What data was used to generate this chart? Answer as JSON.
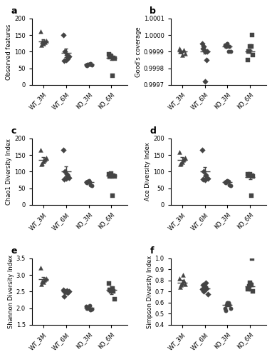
{
  "groups": [
    "WT_3M",
    "WT_6M",
    "KO_3M",
    "KO_6M"
  ],
  "panel_a": {
    "title": "a",
    "ylabel": "Observed features",
    "ylim": [
      0,
      200
    ],
    "yticks": [
      0,
      50,
      100,
      150,
      200
    ],
    "means": [
      130,
      97,
      62,
      82
    ],
    "sems": [
      7,
      13,
      2,
      6
    ],
    "points": [
      [
        162,
        130,
        125,
        128,
        133,
        120,
        130
      ],
      [
        150,
        100,
        75,
        80,
        85,
        73,
        90
      ],
      [
        60,
        62,
        63,
        65,
        60,
        58,
        62
      ],
      [
        93,
        88,
        85,
        82,
        80,
        83,
        27
      ]
    ],
    "jitter": [
      [
        -0.12,
        -0.05,
        0.0,
        0.08,
        0.13,
        -0.08,
        0.05
      ],
      [
        -0.12,
        -0.05,
        0.0,
        0.08,
        0.13,
        -0.08,
        0.05
      ],
      [
        -0.12,
        -0.05,
        0.0,
        0.08,
        0.13,
        -0.08,
        0.05
      ],
      [
        -0.12,
        -0.05,
        0.0,
        0.08,
        0.13,
        -0.08,
        0.05
      ]
    ]
  },
  "panel_b": {
    "title": "b",
    "ylabel": "Good's coverage",
    "ylim": [
      0.9997,
      1.0001
    ],
    "yticks": [
      0.9997,
      0.9998,
      0.9999,
      1.0,
      1.0001
    ],
    "ytick_labels": [
      "0.9997",
      "0.9998",
      "0.9999",
      "1.0000",
      "1.0001"
    ],
    "means": [
      0.9999,
      0.9999,
      0.99993,
      0.9999
    ],
    "sems": [
      4e-06,
      1.3e-05,
      4e-06,
      9e-06
    ],
    "points": [
      [
        0.99992,
        0.9999,
        0.99988,
        0.99991,
        0.99989,
        0.9999
      ],
      [
        0.99995,
        0.99993,
        0.9999,
        0.99985,
        0.99972,
        0.99992,
        0.9999
      ],
      [
        0.99994,
        0.99993,
        0.99995,
        0.99993,
        0.9999,
        0.99993,
        0.9999
      ],
      [
        0.99985,
        0.9999,
        0.99993,
        1.0,
        0.99988,
        0.9999,
        0.99993
      ]
    ],
    "jitter": [
      [
        -0.1,
        -0.05,
        0.0,
        0.08,
        0.12,
        -0.08
      ],
      [
        -0.12,
        -0.05,
        0.0,
        0.08,
        0.0,
        -0.08,
        0.12
      ],
      [
        -0.12,
        -0.05,
        0.0,
        0.08,
        0.13,
        -0.08,
        0.05
      ],
      [
        -0.12,
        -0.05,
        0.0,
        0.08,
        0.13,
        -0.08,
        0.05
      ]
    ]
  },
  "panel_c": {
    "title": "c",
    "ylabel": "Chao1 Diversity Index",
    "ylim": [
      0,
      200
    ],
    "yticks": [
      0,
      50,
      100,
      150,
      200
    ],
    "means": [
      135,
      100,
      68,
      88
    ],
    "sems": [
      8,
      15,
      2,
      6
    ],
    "points": [
      [
        165,
        125,
        130,
        138,
        142,
        122,
        135
      ],
      [
        165,
        100,
        80,
        88,
        82,
        78,
        92
      ],
      [
        68,
        70,
        72,
        60,
        58,
        67,
        68
      ],
      [
        93,
        90,
        95,
        88,
        85,
        86,
        27
      ]
    ],
    "jitter": [
      [
        -0.12,
        -0.05,
        0.0,
        0.08,
        0.13,
        -0.08,
        0.05
      ],
      [
        -0.12,
        -0.05,
        0.0,
        0.08,
        0.13,
        -0.08,
        0.05
      ],
      [
        -0.12,
        -0.05,
        0.0,
        0.08,
        0.13,
        -0.08,
        0.05
      ],
      [
        -0.12,
        -0.05,
        0.0,
        0.08,
        0.13,
        -0.08,
        0.05
      ]
    ]
  },
  "panel_d": {
    "title": "d",
    "ylabel": "Ace Diversity Index",
    "ylim": [
      0,
      200
    ],
    "yticks": [
      0,
      50,
      100,
      150,
      200
    ],
    "means": [
      135,
      100,
      68,
      83
    ],
    "sems": [
      8,
      14,
      2,
      6
    ],
    "points": [
      [
        160,
        125,
        128,
        138,
        142,
        122,
        135
      ],
      [
        165,
        100,
        75,
        82,
        80,
        78,
        90
      ],
      [
        68,
        70,
        72,
        60,
        58,
        67,
        70
      ],
      [
        93,
        90,
        93,
        87,
        85,
        87,
        27
      ]
    ],
    "jitter": [
      [
        -0.12,
        -0.05,
        0.0,
        0.08,
        0.13,
        -0.08,
        0.05
      ],
      [
        -0.12,
        -0.05,
        0.0,
        0.08,
        0.13,
        -0.08,
        0.05
      ],
      [
        -0.12,
        -0.05,
        0.0,
        0.08,
        0.13,
        -0.08,
        0.05
      ],
      [
        -0.12,
        -0.05,
        0.0,
        0.08,
        0.13,
        -0.08,
        0.05
      ]
    ]
  },
  "panel_e": {
    "title": "e",
    "ylabel": "Shannon Diversity Index",
    "ylim": [
      1.5,
      3.5
    ],
    "yticks": [
      1.5,
      2.0,
      2.5,
      3.0,
      3.5
    ],
    "means": [
      2.87,
      2.5,
      2.02,
      2.55
    ],
    "sems": [
      0.07,
      0.05,
      0.04,
      0.12
    ],
    "points": [
      [
        3.22,
        2.82,
        2.78,
        2.88,
        2.9,
        2.72,
        2.85
      ],
      [
        2.55,
        2.48,
        2.52,
        2.47,
        2.5,
        2.35,
        2.53
      ],
      [
        2.05,
        2.02,
        2.0,
        1.95,
        1.98,
        2.0,
        2.08
      ],
      [
        2.75,
        2.55,
        2.5,
        2.5,
        2.28,
        2.55,
        2.6
      ]
    ],
    "jitter": [
      [
        -0.12,
        -0.05,
        0.0,
        0.08,
        0.13,
        -0.08,
        0.05
      ],
      [
        -0.12,
        -0.05,
        0.0,
        0.08,
        0.13,
        -0.08,
        0.05
      ],
      [
        -0.12,
        -0.05,
        0.0,
        0.08,
        0.13,
        -0.08,
        0.05
      ],
      [
        -0.12,
        -0.05,
        0.0,
        0.08,
        0.13,
        -0.08,
        0.05
      ]
    ]
  },
  "panel_f": {
    "title": "f",
    "ylabel": "Simpson Diversity Index",
    "ylim": [
      0.4,
      1.0
    ],
    "yticks": [
      0.4,
      0.5,
      0.6,
      0.7,
      0.8,
      0.9,
      1.0
    ],
    "means": [
      0.78,
      0.73,
      0.58,
      0.75
    ],
    "sems": [
      0.025,
      0.03,
      0.015,
      0.04
    ],
    "points": [
      [
        0.82,
        0.76,
        0.78,
        0.8,
        0.77,
        0.74,
        0.85
      ],
      [
        0.72,
        0.7,
        0.75,
        0.73,
        0.68,
        0.76,
        0.78
      ],
      [
        0.55,
        0.58,
        0.6,
        0.58,
        0.55,
        0.53,
        0.6
      ],
      [
        0.72,
        0.75,
        0.78,
        1.0,
        0.7,
        0.73,
        0.76
      ]
    ],
    "jitter": [
      [
        -0.12,
        -0.05,
        0.0,
        0.08,
        0.13,
        -0.08,
        0.05
      ],
      [
        -0.12,
        -0.05,
        0.0,
        0.08,
        0.13,
        -0.08,
        0.05
      ],
      [
        -0.12,
        -0.05,
        0.0,
        0.08,
        0.13,
        -0.08,
        0.05
      ],
      [
        -0.12,
        -0.05,
        0.0,
        0.08,
        0.13,
        -0.08,
        0.05
      ]
    ]
  },
  "point_color": "#444444",
  "errorbar_color": "#444444",
  "bg_color": "#ffffff"
}
